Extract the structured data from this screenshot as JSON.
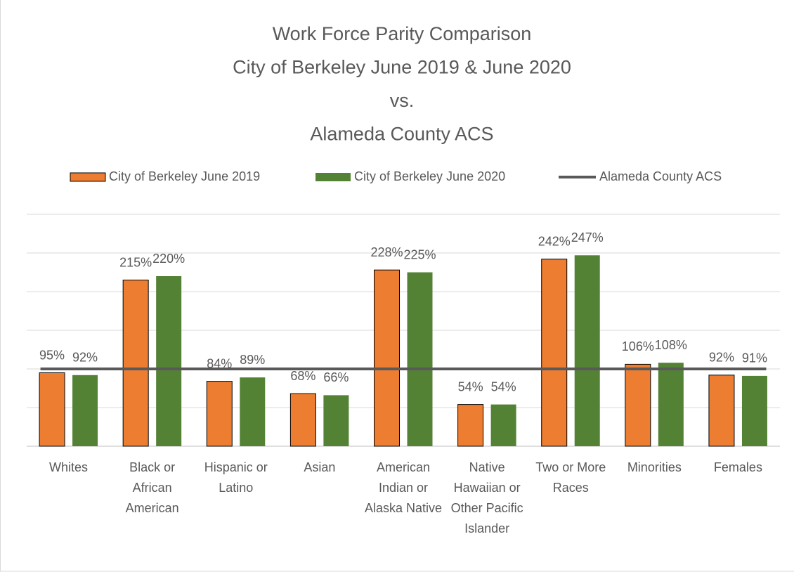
{
  "chart_data": {
    "type": "bar",
    "title": [
      "Work Force Parity Comparison",
      "City of Berkeley June 2019 & June 2020",
      "vs.",
      "Alameda County ACS"
    ],
    "categories": [
      "Whites",
      "Black or African American",
      "Hispanic or Latino",
      "Asian",
      "American Indian or Alaska Native",
      "Native Hawaiian or Other Pacific Islander",
      "Two or More Races",
      "Minorities",
      "Females"
    ],
    "series": [
      {
        "name": "City of Berkeley June 2019",
        "color": "#ed7d31",
        "values": [
          95,
          215,
          84,
          68,
          228,
          54,
          242,
          106,
          92
        ],
        "value_labels": [
          "95%",
          "215%",
          "84%",
          "68%",
          "228%",
          "54%",
          "242%",
          "106%",
          "92%"
        ]
      },
      {
        "name": "City of Berkeley June 2020",
        "color": "#548235",
        "values": [
          92,
          220,
          89,
          66,
          225,
          54,
          247,
          108,
          91
        ],
        "value_labels": [
          "92%",
          "220%",
          "89%",
          "66%",
          "225%",
          "54%",
          "247%",
          "108%",
          "91%"
        ]
      },
      {
        "name": "Alameda County ACS",
        "type": "line",
        "color": "#595959",
        "values": [
          100,
          100,
          100,
          100,
          100,
          100,
          100,
          100,
          100
        ]
      }
    ],
    "ylim": [
      0,
      300
    ],
    "yticks": [
      0,
      50,
      100,
      150,
      200,
      250,
      300
    ],
    "grid": true,
    "legend": "top"
  }
}
